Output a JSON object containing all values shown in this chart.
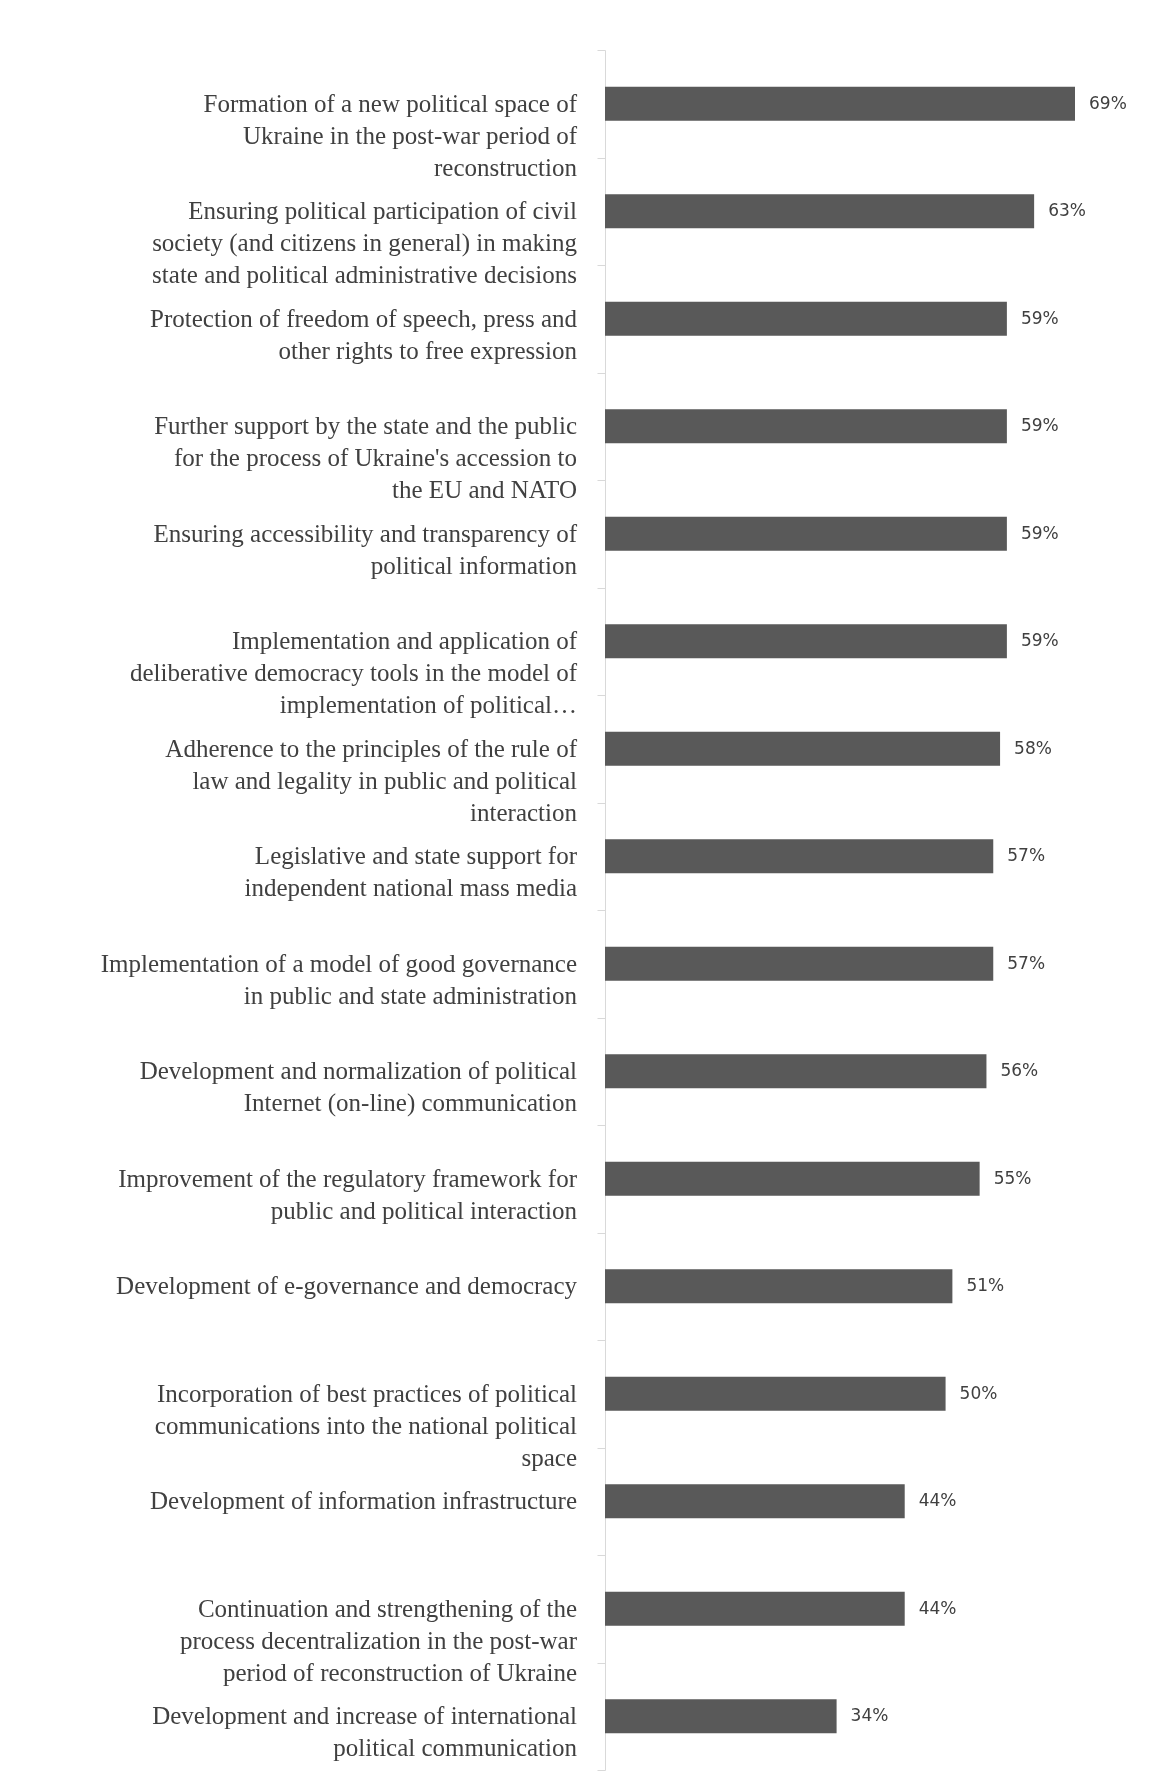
{
  "chart_data": {
    "type": "bar",
    "orientation": "horizontal",
    "color": "#595959",
    "categories": [
      "Formation of a new political space of Ukraine in the post-war period of reconstruction",
      "Ensuring political participation of civil society (and citizens in general) in making state and political administrative decisions",
      "Protection of freedom of speech, press and other rights to free expression",
      "Further support by the state and the public for the process of Ukraine's accession to the EU and NATO",
      "Ensuring accessibility and transparency of political information",
      "Implementation and application of deliberative democracy tools in the model of implementation of political…",
      "Adherence to the principles of the rule of law and legality in public and political interaction",
      "Legislative and state support for independent national mass media",
      "Implementation of a model of good governance in public and state administration",
      "Development and normalization of political Internet (on-line) communication",
      "Improvement of the regulatory framework for public and political interaction",
      "Development of e-governance and democracy",
      "Incorporation of best practices of political communications into the national political space",
      "Development of information infrastructure",
      "Continuation and strengthening of the process decentralization in the post-war period of reconstruction of Ukraine",
      "Development and increase of international political communication"
    ],
    "values": [
      69,
      63,
      59,
      59,
      59,
      59,
      58,
      57,
      57,
      56,
      55,
      51,
      50,
      44,
      44,
      34
    ],
    "value_labels": [
      "69%",
      "63%",
      "59%",
      "59%",
      "59%",
      "59%",
      "58%",
      "57%",
      "57%",
      "56%",
      "55%",
      "51%",
      "50%",
      "44%",
      "44%",
      "34%"
    ]
  }
}
